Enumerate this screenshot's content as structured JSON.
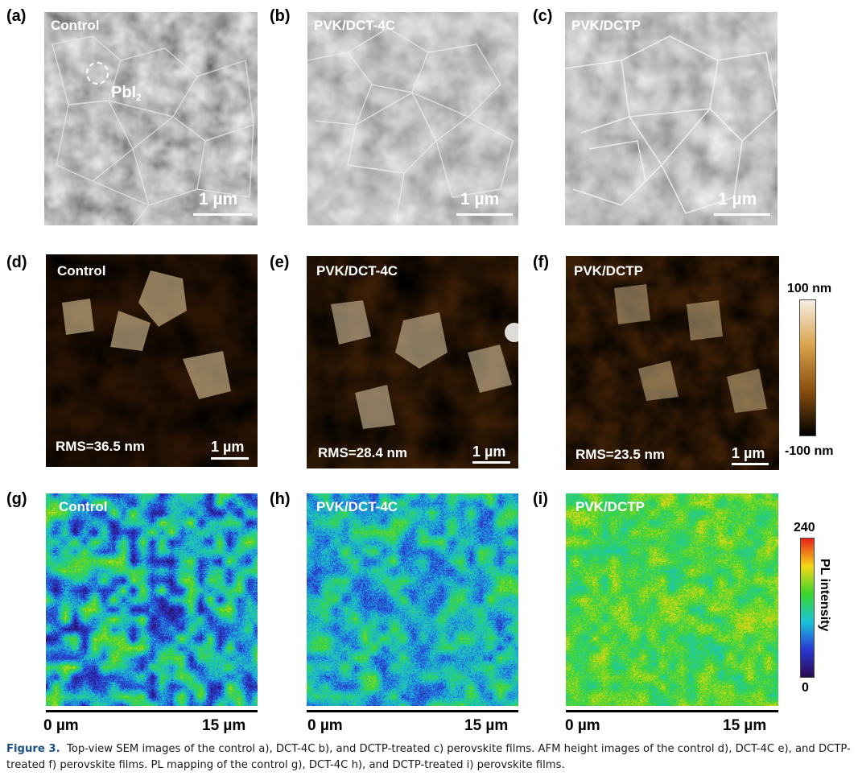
{
  "panels": {
    "a": {
      "letter": "(a)",
      "label": "Control",
      "annotation": "PbI",
      "annotation_sub": "2",
      "scale": "1 µm"
    },
    "b": {
      "letter": "(b)",
      "label": "PVK/DCT-4C",
      "scale": "1 µm"
    },
    "c": {
      "letter": "(c)",
      "label": "PVK/DCTP",
      "scale": "1 µm"
    },
    "d": {
      "letter": "(d)",
      "label": "Control",
      "rms": "RMS=36.5 nm",
      "scale": "1 µm"
    },
    "e": {
      "letter": "(e)",
      "label": "PVK/DCT-4C",
      "rms": "RMS=28.4 nm",
      "scale": "1 µm"
    },
    "f": {
      "letter": "(f)",
      "label": "PVK/DCTP",
      "rms": "RMS=23.5 nm",
      "scale": "1 µm"
    },
    "g": {
      "letter": "(g)",
      "label": "Control"
    },
    "h": {
      "letter": "(h)",
      "label": "PVK/DCT-4C"
    },
    "i": {
      "letter": "(i)",
      "label": "PVK/DCTP"
    }
  },
  "afm_colorbar": {
    "max": "100 nm",
    "min": "-100 nm",
    "colors": [
      "#f6efe2",
      "#d9a24a",
      "#8a4f10",
      "#000000"
    ]
  },
  "pl_colorbar": {
    "max": "240",
    "min": "0",
    "title": "PL intensity",
    "colors": [
      "#e8201a",
      "#f7d816",
      "#39d62a",
      "#18c4d8",
      "#2a3ad8",
      "#2a0a50"
    ]
  },
  "pl_axis": {
    "start": "0 µm",
    "end": "15 µm"
  },
  "pl_mean_level": {
    "g": 0.38,
    "h": 0.42,
    "i": 0.6
  },
  "caption": {
    "figure": "Figure 3.",
    "text": "Top-view SEM images of the control a), DCT-4C b), and DCTP-treated c) perovskite films. AFM height images of the control d), DCT-4C e), and DCTP-treated f) perovskite films. PL mapping of the control g), DCT-4C h), and DCTP-treated i) perovskite films."
  }
}
